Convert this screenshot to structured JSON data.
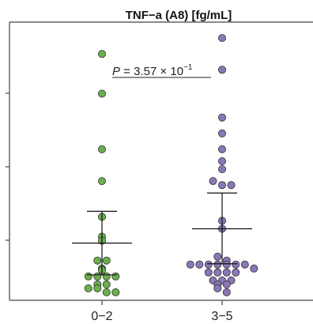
{
  "chart_data": {
    "type": "scatter",
    "title": "TNF−a (A8) [fg/mL]",
    "xlabel": "",
    "ylabel": "",
    "categories": [
      "0−2",
      "3−5"
    ],
    "ylim": [
      0,
      3.5
    ],
    "grid": false,
    "legend": "none",
    "annotation": {
      "p_label": "P",
      "p_value_text": " = 3.57 × 10",
      "p_exponent": "−1"
    },
    "series": [
      {
        "category": "0−2",
        "color": "#6ab04c",
        "values": [
          3.1,
          2.6,
          1.9,
          1.5,
          1.05,
          0.8,
          0.75,
          0.5,
          0.5,
          0.4,
          0.38,
          0.3,
          0.3,
          0.3,
          0.3,
          0.2,
          0.2,
          0.15,
          0.15,
          0.1,
          0.1
        ],
        "mean": 0.72,
        "sd_low": 0.32,
        "sd_high": 1.12
      },
      {
        "category": "3−5",
        "color": "#8b76b8",
        "values": [
          3.3,
          2.9,
          2.3,
          2.1,
          1.9,
          1.75,
          1.65,
          1.5,
          1.45,
          1.45,
          1.0,
          0.9,
          0.55,
          0.5,
          0.45,
          0.45,
          0.45,
          0.45,
          0.45,
          0.45,
          0.45,
          0.4,
          0.35,
          0.35,
          0.35,
          0.35,
          0.25,
          0.25,
          0.25,
          0.2,
          0.2,
          0.15,
          0.1
        ],
        "mean": 0.9,
        "sd_low": 0.46,
        "sd_high": 1.35
      }
    ]
  }
}
